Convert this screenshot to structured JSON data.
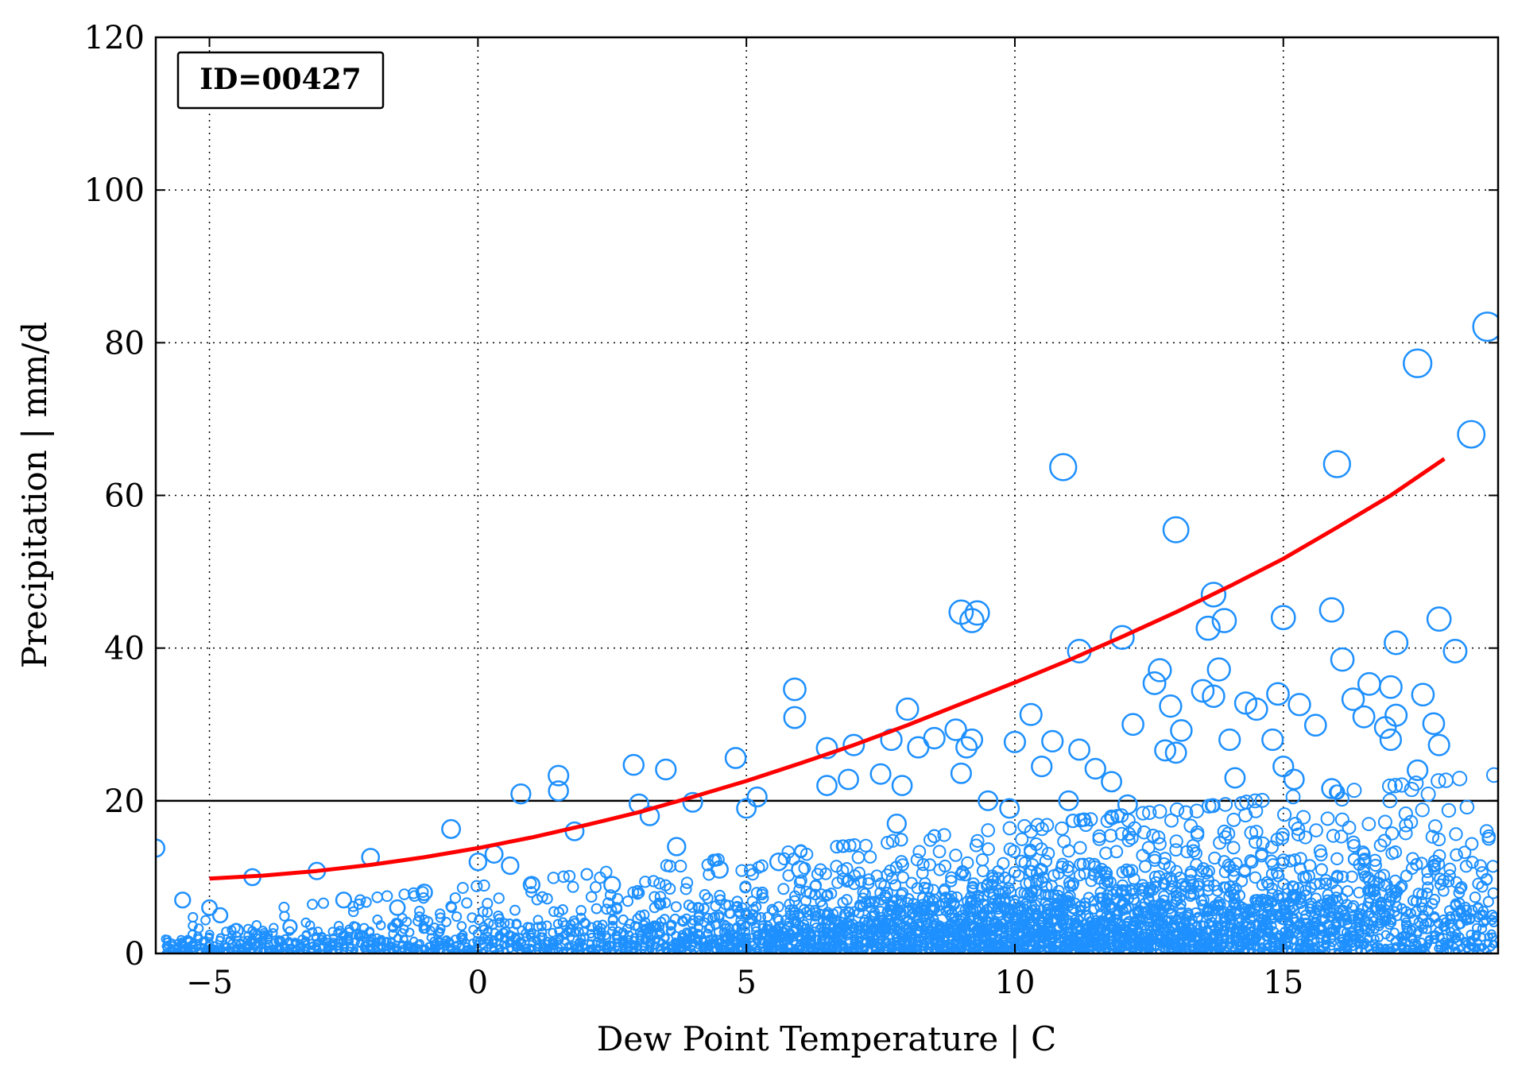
{
  "chart_data": {
    "type": "scatter",
    "title": "",
    "xlabel": "Dew Point Temperature | C",
    "ylabel": "Precipitation | mm/d",
    "xlim": [
      -6,
      19
    ],
    "ylim": [
      0,
      120
    ],
    "x_ticks": [
      -5,
      0,
      5,
      10,
      15
    ],
    "x_tick_labels": [
      "−5",
      "0",
      "5",
      "10",
      "15"
    ],
    "y_ticks": [
      0,
      20,
      40,
      60,
      80,
      100,
      120
    ],
    "y_tick_labels": [
      "0",
      "20",
      "40",
      "60",
      "80",
      "100",
      "120"
    ],
    "grid": true,
    "grid_style": "dotted",
    "reference_line_y": 20,
    "annotation": "ID=00427",
    "colors": {
      "points": "#1E90FF",
      "fit": "#FF0000",
      "axes": "#000000"
    },
    "series": [
      {
        "kind": "points",
        "marker": "open-circle",
        "x": [
          -6.0,
          -5.5,
          -5.0,
          -4.8,
          -4.5,
          -4.2,
          -3.5,
          -3.0,
          -2.5,
          -2.0,
          -1.5,
          -1.0,
          -0.5,
          0.0,
          0.3,
          0.6,
          0.8,
          1.0,
          1.5,
          1.5,
          1.8,
          2.5,
          2.9,
          3.0,
          3.2,
          3.5,
          3.7,
          4.0,
          4.5,
          4.8,
          5.0,
          5.2,
          5.6,
          5.9,
          5.9,
          6.0,
          6.5,
          6.5,
          6.9,
          7.0,
          7.5,
          7.7,
          7.8,
          7.9,
          8.0,
          8.2,
          8.5,
          8.9,
          9.0,
          9.0,
          9.1,
          9.2,
          9.2,
          9.3,
          9.5,
          9.9,
          10.0,
          10.3,
          10.5,
          10.7,
          10.9,
          11.0,
          11.2,
          11.2,
          11.5,
          11.8,
          12.0,
          12.1,
          12.2,
          12.6,
          12.7,
          12.8,
          12.9,
          13.0,
          13.0,
          13.1,
          13.5,
          13.6,
          13.7,
          13.7,
          13.8,
          13.9,
          14.0,
          14.1,
          14.3,
          14.5,
          14.8,
          14.9,
          15.0,
          15.0,
          15.2,
          15.3,
          15.6,
          15.9,
          15.9,
          16.0,
          16.1,
          16.3,
          16.5,
          16.6,
          16.9,
          17.0,
          17.0,
          17.1,
          17.1,
          17.5,
          17.5,
          17.6,
          17.8,
          17.9,
          17.9,
          18.2,
          18.5,
          18.8
        ],
        "y": [
          13.8,
          7.0,
          6.0,
          5.0,
          3.0,
          10.0,
          3.5,
          10.8,
          7.0,
          12.6,
          6.0,
          8.0,
          16.3,
          12.0,
          13.0,
          11.5,
          20.9,
          9.0,
          23.3,
          21.3,
          16.0,
          9.0,
          24.7,
          19.6,
          18.0,
          24.1,
          14.0,
          19.8,
          11.0,
          25.6,
          19.0,
          20.5,
          12.0,
          34.6,
          30.9,
          11.0,
          26.9,
          22.0,
          22.8,
          27.3,
          23.5,
          28.0,
          17.0,
          22.0,
          32.0,
          27.0,
          28.2,
          29.3,
          44.7,
          23.6,
          27.0,
          43.6,
          28.0,
          44.6,
          20.0,
          19.0,
          27.7,
          31.3,
          24.5,
          27.8,
          63.7,
          20.0,
          39.6,
          26.7,
          24.2,
          22.5,
          41.4,
          19.5,
          30.0,
          35.4,
          37.1,
          26.6,
          32.4,
          55.5,
          26.3,
          29.2,
          34.4,
          42.6,
          33.7,
          47.0,
          37.2,
          43.6,
          28.0,
          23.0,
          32.8,
          32.0,
          28.0,
          34.0,
          44.0,
          24.5,
          22.8,
          32.6,
          29.9,
          45.0,
          21.6,
          64.1,
          38.5,
          33.3,
          31.0,
          35.3,
          29.6,
          28.0,
          34.9,
          40.7,
          31.2,
          77.3,
          24.0,
          33.9,
          30.1,
          43.8,
          27.3,
          39.6,
          68.0,
          82.1
        ]
      },
      {
        "kind": "fit",
        "line_style": "solid",
        "x": [
          -5,
          -4,
          -3,
          -2,
          -1,
          0,
          1,
          2,
          3,
          4,
          5,
          6,
          7,
          8,
          9,
          10,
          11,
          12,
          13,
          14,
          15,
          16,
          17,
          18
        ],
        "y": [
          9.8,
          10.2,
          10.8,
          11.6,
          12.6,
          13.8,
          15.2,
          16.8,
          18.5,
          20.5,
          22.6,
          24.9,
          27.3,
          29.9,
          32.7,
          35.5,
          38.4,
          41.5,
          44.7,
          48.1,
          51.7,
          55.8,
          60.0,
          64.8
        ]
      }
    ]
  }
}
